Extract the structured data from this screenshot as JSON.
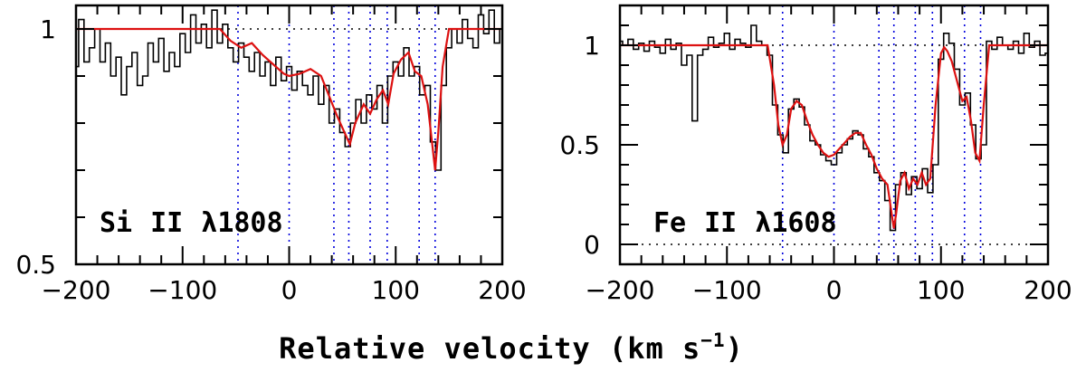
{
  "chart_data": [
    {
      "type": "line",
      "title": "",
      "label": "Si II λ1808",
      "label_parts": {
        "ion": "Si",
        "stage": "II",
        "lambda_symbol": "λ",
        "wavelength": "1808"
      },
      "xlim": [
        -200,
        200
      ],
      "ylim": [
        0.5,
        1.05
      ],
      "xticks": [
        -200,
        -100,
        0,
        100,
        200
      ],
      "xtick_labels": [
        "−200",
        "−100",
        "0",
        "100",
        "200"
      ],
      "yticks": [
        0.5,
        1
      ],
      "ytick_labels": [
        "0.5",
        "1"
      ],
      "continuum_level": 1,
      "components_kms": [
        -48,
        0,
        42,
        56,
        76,
        92,
        122,
        137
      ],
      "model_color": "#dd1111",
      "component_color": "#0000dd",
      "model": {
        "x": [
          -200,
          -65,
          -55,
          -45,
          -35,
          -25,
          -15,
          -5,
          0,
          10,
          20,
          30,
          38,
          45,
          52,
          57,
          62,
          70,
          76,
          82,
          88,
          93,
          98,
          105,
          112,
          118,
          124,
          130,
          134,
          137,
          140,
          144,
          150,
          200
        ],
        "y": [
          1.0,
          1.0,
          0.975,
          0.96,
          0.97,
          0.945,
          0.925,
          0.905,
          0.9,
          0.905,
          0.915,
          0.9,
          0.855,
          0.815,
          0.78,
          0.755,
          0.8,
          0.84,
          0.82,
          0.85,
          0.87,
          0.84,
          0.905,
          0.935,
          0.95,
          0.91,
          0.9,
          0.84,
          0.76,
          0.7,
          0.78,
          0.92,
          1.0,
          1.0
        ]
      },
      "spectrum": {
        "x": [
          -200,
          -195,
          -190,
          -185,
          -180,
          -175,
          -170,
          -165,
          -160,
          -155,
          -150,
          -145,
          -140,
          -135,
          -130,
          -125,
          -120,
          -115,
          -110,
          -105,
          -100,
          -95,
          -90,
          -85,
          -80,
          -75,
          -70,
          -65,
          -60,
          -55,
          -50,
          -45,
          -40,
          -35,
          -30,
          -25,
          -20,
          -15,
          -10,
          -5,
          0,
          5,
          10,
          15,
          20,
          25,
          30,
          35,
          40,
          45,
          50,
          55,
          60,
          65,
          70,
          75,
          80,
          85,
          90,
          95,
          100,
          105,
          110,
          115,
          120,
          125,
          130,
          135,
          140,
          145,
          150,
          155,
          160,
          165,
          170,
          175,
          180,
          185,
          190,
          195,
          200
        ],
        "y": [
          0.92,
          1.02,
          0.93,
          0.96,
          1.0,
          0.93,
          0.97,
          0.9,
          0.94,
          0.86,
          0.92,
          0.95,
          0.88,
          0.9,
          0.97,
          0.93,
          0.98,
          0.91,
          0.95,
          0.92,
          0.99,
          0.95,
          1.03,
          0.97,
          1.01,
          0.96,
          1.04,
          0.97,
          1.01,
          0.96,
          0.93,
          0.97,
          0.94,
          0.91,
          0.95,
          0.9,
          0.93,
          0.88,
          0.94,
          0.89,
          0.92,
          0.87,
          0.91,
          0.88,
          0.86,
          0.9,
          0.84,
          0.88,
          0.8,
          0.83,
          0.78,
          0.75,
          0.8,
          0.85,
          0.8,
          0.86,
          0.83,
          0.88,
          0.8,
          0.9,
          0.93,
          0.9,
          0.96,
          0.9,
          0.92,
          0.86,
          0.88,
          0.76,
          0.7,
          0.88,
          0.96,
          1.0,
          0.97,
          1.02,
          0.98,
          0.96,
          1.03,
          0.99,
          1.04,
          0.97,
          1.0
        ]
      }
    },
    {
      "type": "line",
      "title": "",
      "label": "Fe II λ1608",
      "label_parts": {
        "ion": "Fe",
        "stage": "II",
        "lambda_symbol": "λ",
        "wavelength": "1608"
      },
      "xlim": [
        -200,
        200
      ],
      "ylim": [
        -0.1,
        1.2
      ],
      "xticks": [
        -200,
        -100,
        0,
        100,
        200
      ],
      "xtick_labels": [
        "−200",
        "−100",
        "0",
        "100",
        "200"
      ],
      "yticks": [
        0,
        0.5,
        1
      ],
      "ytick_labels": [
        "0",
        "0.5",
        "1"
      ],
      "continuum_level": 1,
      "zero_level": 0,
      "components_kms": [
        -48,
        0,
        42,
        56,
        76,
        92,
        122,
        137
      ],
      "model_color": "#dd1111",
      "component_color": "#0000dd",
      "model": {
        "x": [
          -200,
          -62,
          -56,
          -52,
          -48,
          -44,
          -40,
          -35,
          -30,
          -25,
          -20,
          -15,
          -10,
          -5,
          0,
          5,
          10,
          15,
          20,
          25,
          30,
          35,
          40,
          45,
          50,
          54,
          56,
          58,
          62,
          66,
          70,
          74,
          78,
          82,
          86,
          90,
          95,
          100,
          103,
          106,
          110,
          115,
          120,
          124,
          128,
          132,
          136,
          140,
          145,
          200
        ],
        "y": [
          1.0,
          1.0,
          0.8,
          0.6,
          0.5,
          0.55,
          0.68,
          0.72,
          0.7,
          0.62,
          0.55,
          0.5,
          0.46,
          0.44,
          0.45,
          0.48,
          0.51,
          0.54,
          0.56,
          0.56,
          0.5,
          0.45,
          0.38,
          0.33,
          0.3,
          0.15,
          0.08,
          0.15,
          0.32,
          0.36,
          0.28,
          0.33,
          0.3,
          0.36,
          0.3,
          0.33,
          0.7,
          0.96,
          0.99,
          0.97,
          0.92,
          0.82,
          0.72,
          0.74,
          0.62,
          0.46,
          0.42,
          0.7,
          1.0,
          1.0
        ]
      },
      "spectrum": {
        "x": [
          -200,
          -195,
          -190,
          -185,
          -180,
          -175,
          -170,
          -165,
          -160,
          -155,
          -150,
          -145,
          -140,
          -135,
          -130,
          -125,
          -120,
          -115,
          -110,
          -105,
          -100,
          -95,
          -90,
          -85,
          -80,
          -75,
          -70,
          -65,
          -60,
          -55,
          -50,
          -45,
          -40,
          -35,
          -30,
          -25,
          -20,
          -15,
          -10,
          -5,
          0,
          5,
          10,
          15,
          20,
          25,
          30,
          35,
          40,
          45,
          50,
          55,
          60,
          65,
          70,
          75,
          80,
          85,
          90,
          95,
          100,
          105,
          110,
          115,
          120,
          125,
          130,
          135,
          140,
          145,
          150,
          155,
          160,
          165,
          170,
          175,
          180,
          185,
          190,
          195,
          200
        ],
        "y": [
          1.02,
          1.0,
          1.03,
          0.98,
          1.01,
          0.97,
          1.02,
          0.99,
          0.96,
          1.03,
          0.98,
          1.01,
          0.9,
          0.95,
          0.62,
          0.95,
          0.98,
          1.04,
          0.99,
          1.01,
          1.06,
          0.98,
          1.03,
          1.01,
          0.99,
          1.1,
          1.02,
          1.0,
          0.95,
          0.7,
          0.55,
          0.46,
          0.68,
          0.73,
          0.69,
          0.6,
          0.52,
          0.5,
          0.45,
          0.42,
          0.4,
          0.46,
          0.5,
          0.53,
          0.57,
          0.55,
          0.48,
          0.44,
          0.36,
          0.32,
          0.22,
          0.07,
          0.3,
          0.36,
          0.25,
          0.34,
          0.28,
          0.38,
          0.26,
          0.4,
          0.93,
          1.06,
          1.01,
          0.88,
          0.7,
          0.76,
          0.6,
          0.43,
          0.5,
          1.02,
          0.98,
          1.04,
          1.0,
          0.98,
          1.02,
          0.96,
          1.06,
          0.99,
          1.02,
          0.95,
          0.96
        ]
      }
    }
  ],
  "xlabel": {
    "text": "Relative velocity (km s",
    "superscript": "−1",
    "close": ")"
  }
}
